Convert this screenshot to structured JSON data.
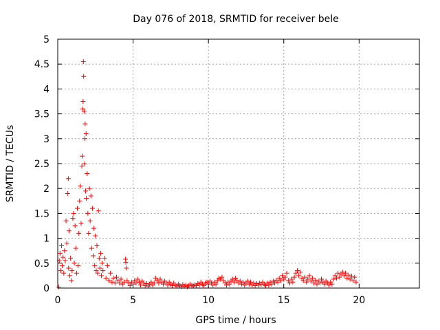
{
  "chart_data": {
    "type": "scatter",
    "title": "Day 076 of 2018, SRMTID for receiver bele",
    "xlabel": "GPS time / hours",
    "ylabel": "SRMTID / TECUs",
    "xlim": [
      0,
      24
    ],
    "ylim": [
      0,
      5
    ],
    "xticks": [
      0,
      5,
      10,
      15,
      20
    ],
    "yticks": [
      0,
      0.5,
      1,
      1.5,
      2,
      2.5,
      3,
      3.5,
      4,
      4.5,
      5
    ],
    "xtick_labels": [
      "0",
      "5",
      "10",
      "15",
      "20"
    ],
    "ytick_labels": [
      "0",
      "0.5",
      "1",
      "1.5",
      "2",
      "2.5",
      "3",
      "3.5",
      "4",
      "4.5",
      "5"
    ],
    "grid": true,
    "marker": "+",
    "color": "#ff0000",
    "series": [
      {
        "name": "SRMTID",
        "points": [
          [
            0.05,
            0.02
          ],
          [
            0.1,
            0.55
          ],
          [
            0.15,
            0.7
          ],
          [
            0.2,
            0.35
          ],
          [
            0.25,
            0.85
          ],
          [
            0.3,
            0.45
          ],
          [
            0.35,
            0.62
          ],
          [
            0.4,
            0.3
          ],
          [
            0.45,
            0.75
          ],
          [
            0.5,
            0.55
          ],
          [
            0.55,
            1.35
          ],
          [
            0.6,
            0.9
          ],
          [
            0.65,
            1.9
          ],
          [
            0.7,
            2.2
          ],
          [
            0.72,
            0.4
          ],
          [
            0.75,
            1.15
          ],
          [
            0.8,
            0.25
          ],
          [
            0.85,
            0.6
          ],
          [
            0.9,
            0.15
          ],
          [
            0.95,
            0.35
          ],
          [
            1.0,
            1.4
          ],
          [
            1.05,
            1.5
          ],
          [
            1.1,
            0.5
          ],
          [
            1.15,
            1.25
          ],
          [
            1.2,
            0.8
          ],
          [
            1.25,
            0.3
          ],
          [
            1.3,
            1.6
          ],
          [
            1.35,
            0.45
          ],
          [
            1.4,
            1.1
          ],
          [
            1.45,
            1.75
          ],
          [
            1.5,
            2.05
          ],
          [
            1.55,
            1.3
          ],
          [
            1.6,
            2.45
          ],
          [
            1.62,
            2.65
          ],
          [
            1.65,
            3.6
          ],
          [
            1.68,
            3.75
          ],
          [
            1.7,
            4.55
          ],
          [
            1.72,
            4.25
          ],
          [
            1.75,
            3.55
          ],
          [
            1.78,
            2.5
          ],
          [
            1.8,
            3.0
          ],
          [
            1.82,
            3.3
          ],
          [
            1.85,
            1.95
          ],
          [
            1.88,
            3.1
          ],
          [
            1.9,
            1.8
          ],
          [
            1.95,
            2.3
          ],
          [
            2.0,
            1.5
          ],
          [
            2.05,
            1.1
          ],
          [
            2.1,
            2.0
          ],
          [
            2.15,
            1.35
          ],
          [
            2.2,
            1.85
          ],
          [
            2.25,
            0.8
          ],
          [
            2.3,
            1.6
          ],
          [
            2.35,
            0.65
          ],
          [
            2.4,
            1.2
          ],
          [
            2.45,
            0.45
          ],
          [
            2.5,
            1.05
          ],
          [
            2.55,
            0.35
          ],
          [
            2.6,
            0.85
          ],
          [
            2.65,
            0.3
          ],
          [
            2.7,
            1.55
          ],
          [
            2.75,
            0.6
          ],
          [
            2.8,
            0.4
          ],
          [
            2.85,
            0.7
          ],
          [
            2.9,
            0.25
          ],
          [
            2.95,
            0.5
          ],
          [
            3.0,
            0.35
          ],
          [
            3.1,
            0.6
          ],
          [
            3.2,
            0.2
          ],
          [
            3.3,
            0.45
          ],
          [
            3.4,
            0.15
          ],
          [
            3.5,
            0.3
          ],
          [
            3.6,
            0.12
          ],
          [
            3.7,
            0.2
          ],
          [
            3.8,
            0.1
          ],
          [
            3.9,
            0.22
          ],
          [
            4.0,
            0.15
          ],
          [
            4.1,
            0.1
          ],
          [
            4.2,
            0.18
          ],
          [
            4.3,
            0.08
          ],
          [
            4.4,
            0.12
          ],
          [
            4.5,
            0.58
          ],
          [
            4.52,
            0.52
          ],
          [
            4.55,
            0.4
          ],
          [
            4.6,
            0.15
          ],
          [
            4.7,
            0.1
          ],
          [
            4.8,
            0.05
          ],
          [
            4.9,
            0.12
          ],
          [
            5.0,
            0.08
          ],
          [
            5.1,
            0.15
          ],
          [
            5.2,
            0.1
          ],
          [
            5.3,
            0.18
          ],
          [
            5.4,
            0.12
          ],
          [
            5.5,
            0.06
          ],
          [
            5.6,
            0.14
          ],
          [
            5.7,
            0.1
          ],
          [
            5.8,
            0.05
          ],
          [
            5.9,
            0.09
          ],
          [
            6.0,
            0.04
          ],
          [
            6.1,
            0.08
          ],
          [
            6.2,
            0.12
          ],
          [
            6.3,
            0.06
          ],
          [
            6.4,
            0.1
          ],
          [
            6.5,
            0.2
          ],
          [
            6.6,
            0.15
          ],
          [
            6.7,
            0.1
          ],
          [
            6.8,
            0.18
          ],
          [
            6.9,
            0.12
          ],
          [
            7.0,
            0.08
          ],
          [
            7.1,
            0.14
          ],
          [
            7.2,
            0.1
          ],
          [
            7.3,
            0.06
          ],
          [
            7.4,
            0.12
          ],
          [
            7.5,
            0.08
          ],
          [
            7.6,
            0.05
          ],
          [
            7.7,
            0.1
          ],
          [
            7.8,
            0.06
          ],
          [
            7.9,
            0.04
          ],
          [
            8.0,
            0.08
          ],
          [
            8.1,
            0.05
          ],
          [
            8.2,
            0.03
          ],
          [
            8.3,
            0.07
          ],
          [
            8.4,
            0.04
          ],
          [
            8.5,
            0.06
          ],
          [
            8.6,
            0.03
          ],
          [
            8.7,
            0.05
          ],
          [
            8.8,
            0.08
          ],
          [
            8.9,
            0.05
          ],
          [
            9.0,
            0.04
          ],
          [
            9.1,
            0.07
          ],
          [
            9.2,
            0.05
          ],
          [
            9.3,
            0.09
          ],
          [
            9.4,
            0.06
          ],
          [
            9.5,
            0.12
          ],
          [
            9.6,
            0.08
          ],
          [
            9.7,
            0.05
          ],
          [
            9.8,
            0.1
          ],
          [
            9.9,
            0.12
          ],
          [
            10.0,
            0.08
          ],
          [
            10.1,
            0.14
          ],
          [
            10.2,
            0.1
          ],
          [
            10.3,
            0.06
          ],
          [
            10.4,
            0.12
          ],
          [
            10.5,
            0.08
          ],
          [
            10.6,
            0.15
          ],
          [
            10.7,
            0.2
          ],
          [
            10.8,
            0.18
          ],
          [
            10.9,
            0.22
          ],
          [
            11.0,
            0.15
          ],
          [
            11.1,
            0.1
          ],
          [
            11.2,
            0.06
          ],
          [
            11.3,
            0.12
          ],
          [
            11.4,
            0.08
          ],
          [
            11.5,
            0.14
          ],
          [
            11.6,
            0.18
          ],
          [
            11.7,
            0.12
          ],
          [
            11.8,
            0.2
          ],
          [
            11.9,
            0.15
          ],
          [
            12.0,
            0.1
          ],
          [
            12.1,
            0.14
          ],
          [
            12.2,
            0.08
          ],
          [
            12.3,
            0.12
          ],
          [
            12.4,
            0.06
          ],
          [
            12.5,
            0.1
          ],
          [
            12.6,
            0.14
          ],
          [
            12.7,
            0.08
          ],
          [
            12.8,
            0.12
          ],
          [
            12.9,
            0.06
          ],
          [
            13.0,
            0.1
          ],
          [
            13.1,
            0.05
          ],
          [
            13.2,
            0.09
          ],
          [
            13.3,
            0.06
          ],
          [
            13.4,
            0.1
          ],
          [
            13.5,
            0.07
          ],
          [
            13.6,
            0.12
          ],
          [
            13.7,
            0.08
          ],
          [
            13.8,
            0.05
          ],
          [
            13.9,
            0.1
          ],
          [
            14.0,
            0.06
          ],
          [
            14.1,
            0.12
          ],
          [
            14.2,
            0.08
          ],
          [
            14.3,
            0.14
          ],
          [
            14.4,
            0.1
          ],
          [
            14.5,
            0.16
          ],
          [
            14.6,
            0.12
          ],
          [
            14.7,
            0.2
          ],
          [
            14.8,
            0.15
          ],
          [
            14.9,
            0.25
          ],
          [
            15.0,
            0.18
          ],
          [
            15.1,
            0.22
          ],
          [
            15.2,
            0.3
          ],
          [
            15.3,
            0.15
          ],
          [
            15.4,
            0.1
          ],
          [
            15.5,
            0.18
          ],
          [
            15.6,
            0.12
          ],
          [
            15.7,
            0.22
          ],
          [
            15.8,
            0.3
          ],
          [
            15.9,
            0.35
          ],
          [
            16.0,
            0.25
          ],
          [
            16.1,
            0.32
          ],
          [
            16.2,
            0.2
          ],
          [
            16.3,
            0.15
          ],
          [
            16.4,
            0.22
          ],
          [
            16.5,
            0.12
          ],
          [
            16.6,
            0.18
          ],
          [
            16.7,
            0.25
          ],
          [
            16.8,
            0.14
          ],
          [
            16.9,
            0.2
          ],
          [
            17.0,
            0.1
          ],
          [
            17.1,
            0.16
          ],
          [
            17.2,
            0.08
          ],
          [
            17.3,
            0.14
          ],
          [
            17.4,
            0.1
          ],
          [
            17.5,
            0.18
          ],
          [
            17.6,
            0.12
          ],
          [
            17.7,
            0.08
          ],
          [
            17.8,
            0.14
          ],
          [
            17.9,
            0.1
          ],
          [
            18.0,
            0.06
          ],
          [
            18.1,
            0.12
          ],
          [
            18.2,
            0.08
          ],
          [
            18.3,
            0.18
          ],
          [
            18.4,
            0.25
          ],
          [
            18.5,
            0.2
          ],
          [
            18.6,
            0.3
          ],
          [
            18.7,
            0.22
          ],
          [
            18.8,
            0.28
          ],
          [
            18.9,
            0.32
          ],
          [
            19.0,
            0.25
          ],
          [
            19.1,
            0.3
          ],
          [
            19.2,
            0.2
          ],
          [
            19.3,
            0.26
          ],
          [
            19.4,
            0.18
          ],
          [
            19.5,
            0.24
          ],
          [
            19.6,
            0.15
          ],
          [
            19.7,
            0.22
          ],
          [
            19.8,
            0.12
          ]
        ]
      }
    ]
  }
}
